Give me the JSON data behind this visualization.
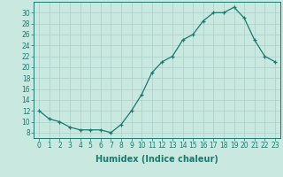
{
  "x": [
    0,
    1,
    2,
    3,
    4,
    5,
    6,
    7,
    8,
    9,
    10,
    11,
    12,
    13,
    14,
    15,
    16,
    17,
    18,
    19,
    20,
    21,
    22,
    23
  ],
  "y": [
    12,
    10.5,
    10,
    9,
    8.5,
    8.5,
    8.5,
    8,
    9.5,
    12,
    15,
    19,
    21,
    22,
    25,
    26,
    28.5,
    30,
    30,
    31,
    29,
    25,
    22,
    21
  ],
  "line_color": "#1a7a6e",
  "marker": "+",
  "bg_color": "#c8e8e0",
  "grid_color": "#aacfca",
  "xlabel": "Humidex (Indice chaleur)",
  "xlim": [
    -0.5,
    23.5
  ],
  "ylim": [
    7,
    32
  ],
  "yticks": [
    8,
    10,
    12,
    14,
    16,
    18,
    20,
    22,
    24,
    26,
    28,
    30
  ],
  "xticks": [
    0,
    1,
    2,
    3,
    4,
    5,
    6,
    7,
    8,
    9,
    10,
    11,
    12,
    13,
    14,
    15,
    16,
    17,
    18,
    19,
    20,
    21,
    22,
    23
  ],
  "label_fontsize": 7,
  "tick_fontsize": 5.5
}
